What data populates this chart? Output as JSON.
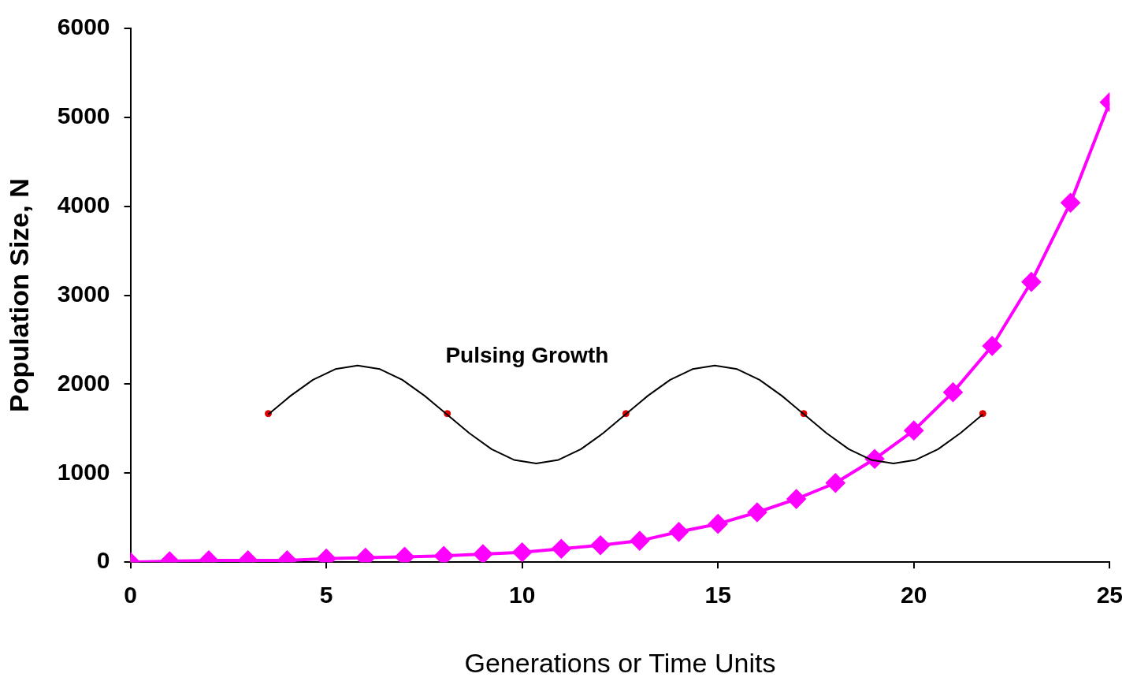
{
  "chart_data": {
    "type": "line",
    "xlabel": "Generations or Time Units",
    "ylabel": "Population Size, N",
    "xlim": [
      0,
      25
    ],
    "xticks": [
      0,
      5,
      10,
      15,
      20,
      25
    ],
    "ylim": [
      0,
      6000
    ],
    "yticks": [
      0,
      1000,
      2000,
      3000,
      4000,
      5000,
      6000
    ],
    "grid": false,
    "legend": false,
    "annotations": [
      "Pulsing Growth"
    ],
    "series": [
      {
        "color": "#000000",
        "marker": "none",
        "x": [
          3.52,
          4.09,
          4.66,
          5.23,
          5.8,
          6.37,
          6.94,
          7.51,
          8.08,
          8.65,
          9.22,
          9.79,
          10.36,
          10.93,
          11.5,
          12.07,
          12.64,
          13.21,
          13.78,
          14.35,
          14.92,
          15.49,
          16.06,
          16.63,
          17.2,
          17.77,
          18.34,
          18.91,
          19.48,
          20.05,
          20.62,
          21.19,
          21.76
        ],
        "values": [
          1660,
          1870,
          2050,
          2170,
          2210,
          2170,
          2050,
          1870,
          1660,
          1450,
          1270,
          1150,
          1110,
          1150,
          1270,
          1450,
          1660,
          1870,
          2050,
          2170,
          2210,
          2170,
          2050,
          1870,
          1660,
          1450,
          1270,
          1150,
          1110,
          1150,
          1270,
          1450,
          1660
        ]
      },
      {
        "type": "scatter",
        "color": "#e00000",
        "marker": "circle",
        "x": [
          3.52,
          8.09,
          12.65,
          17.19,
          21.76
        ],
        "values": [
          1670,
          1670,
          1670,
          1670,
          1670
        ]
      },
      {
        "color": "#ff00ff",
        "marker": "diamond",
        "x": [
          0,
          1,
          2,
          3,
          4,
          5,
          6,
          7,
          8,
          9,
          10,
          11,
          12,
          13,
          14,
          15,
          16,
          17,
          18,
          19,
          20,
          21,
          22,
          23,
          24,
          25
        ],
        "values": [
          0,
          10,
          20,
          20,
          20,
          40,
          50,
          60,
          70,
          90,
          110,
          150,
          190,
          240,
          340,
          430,
          560,
          710,
          890,
          1160,
          1480,
          1910,
          2430,
          3150,
          4040,
          5170
        ]
      },
      {
        "type": "scatter",
        "color": "#ffff00",
        "marker": "triangle",
        "x": [
          0
        ],
        "values": [
          0
        ]
      }
    ]
  }
}
